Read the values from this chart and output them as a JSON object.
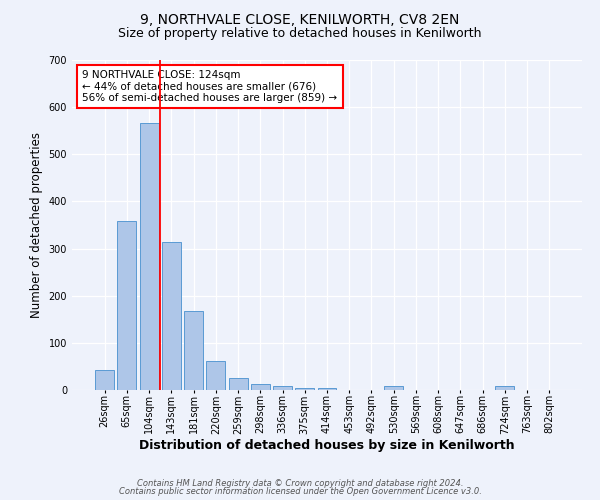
{
  "title": "9, NORTHVALE CLOSE, KENILWORTH, CV8 2EN",
  "subtitle": "Size of property relative to detached houses in Kenilworth",
  "xlabel": "Distribution of detached houses by size in Kenilworth",
  "ylabel": "Number of detached properties",
  "categories": [
    "26sqm",
    "65sqm",
    "104sqm",
    "143sqm",
    "181sqm",
    "220sqm",
    "259sqm",
    "298sqm",
    "336sqm",
    "375sqm",
    "414sqm",
    "453sqm",
    "492sqm",
    "530sqm",
    "569sqm",
    "608sqm",
    "647sqm",
    "686sqm",
    "724sqm",
    "763sqm",
    "802sqm"
  ],
  "values": [
    42,
    358,
    567,
    315,
    167,
    62,
    25,
    13,
    8,
    5,
    5,
    0,
    0,
    8,
    0,
    0,
    0,
    0,
    8,
    0,
    0
  ],
  "bar_color": "#aec6e8",
  "bar_edge_color": "#5a9ad4",
  "red_line_index": 2.5,
  "annotation_text": "9 NORTHVALE CLOSE: 124sqm\n← 44% of detached houses are smaller (676)\n56% of semi-detached houses are larger (859) →",
  "annotation_box_color": "white",
  "annotation_box_edge_color": "red",
  "red_line_color": "red",
  "ylim": [
    0,
    700
  ],
  "yticks": [
    0,
    100,
    200,
    300,
    400,
    500,
    600,
    700
  ],
  "footer_line1": "Contains HM Land Registry data © Crown copyright and database right 2024.",
  "footer_line2": "Contains public sector information licensed under the Open Government Licence v3.0.",
  "bg_color": "#eef2fb",
  "grid_color": "white",
  "title_fontsize": 10,
  "subtitle_fontsize": 9,
  "axis_label_fontsize": 8.5,
  "tick_fontsize": 7,
  "footer_fontsize": 6,
  "annotation_fontsize": 7.5
}
